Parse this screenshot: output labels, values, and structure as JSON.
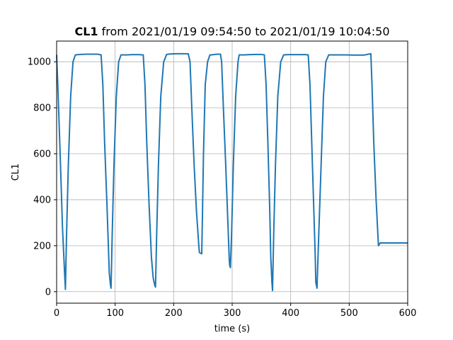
{
  "chart_data": {
    "type": "line",
    "title_bold": "CL1",
    "title_rest": " from 2021/01/19 09:54:50 to 2021/01/19 10:04:50",
    "xlabel": "time (s)",
    "ylabel": "CL1",
    "xlim": [
      0,
      600
    ],
    "ylim": [
      -50,
      1090
    ],
    "xticks": [
      0,
      100,
      200,
      300,
      400,
      500,
      600
    ],
    "yticks": [
      0,
      200,
      400,
      600,
      800,
      1000
    ],
    "grid": true,
    "line_color": "#1f77b4",
    "series": [
      {
        "x": [
          0,
          2,
          6,
          10,
          14,
          15,
          17,
          20,
          24,
          28,
          32,
          40,
          50,
          60,
          70,
          76,
          79,
          82,
          86,
          90,
          92,
          93,
          95,
          98,
          102,
          106,
          110,
          120,
          130,
          140,
          148,
          151,
          154,
          158,
          162,
          165,
          168,
          169,
          171,
          174,
          178,
          183,
          188,
          195,
          205,
          215,
          225,
          228,
          231,
          235,
          239,
          243,
          244,
          248,
          249,
          251,
          254,
          258,
          262,
          265,
          270,
          275,
          280,
          282,
          285,
          289,
          293,
          295,
          296,
          297,
          299,
          302,
          306,
          310,
          312,
          315,
          320,
          330,
          340,
          350,
          355,
          358,
          361,
          364,
          366,
          368,
          369,
          371,
          374,
          378,
          383,
          388,
          395,
          405,
          415,
          425,
          430,
          433,
          436,
          439,
          442,
          443,
          445,
          448,
          452,
          456,
          460,
          465,
          475,
          485,
          495,
          505,
          515,
          525,
          537,
          539,
          542,
          546,
          550,
          553,
          555,
          560,
          580,
          600
        ],
        "y": [
          1030,
          900,
          600,
          280,
          60,
          10,
          250,
          550,
          850,
          1000,
          1030,
          1032,
          1033,
          1033,
          1033,
          1030,
          900,
          650,
          380,
          80,
          30,
          15,
          250,
          550,
          850,
          1000,
          1030,
          1030,
          1031,
          1031,
          1030,
          900,
          650,
          380,
          150,
          60,
          25,
          20,
          250,
          550,
          850,
          1000,
          1032,
          1034,
          1035,
          1035,
          1035,
          1000,
          800,
          550,
          350,
          200,
          170,
          165,
          300,
          600,
          900,
          1000,
          1030,
          1030,
          1032,
          1033,
          1033,
          1000,
          800,
          550,
          280,
          140,
          110,
          105,
          250,
          550,
          850,
          1000,
          1030,
          1030,
          1030,
          1031,
          1032,
          1032,
          1030,
          900,
          650,
          380,
          150,
          40,
          5,
          250,
          550,
          850,
          1000,
          1030,
          1031,
          1031,
          1031,
          1031,
          1030,
          900,
          650,
          400,
          150,
          40,
          15,
          250,
          550,
          850,
          1000,
          1030,
          1030,
          1030,
          1030,
          1029,
          1029,
          1029,
          1035,
          900,
          650,
          400,
          200,
          212,
          212,
          212,
          212,
          212
        ]
      }
    ]
  }
}
